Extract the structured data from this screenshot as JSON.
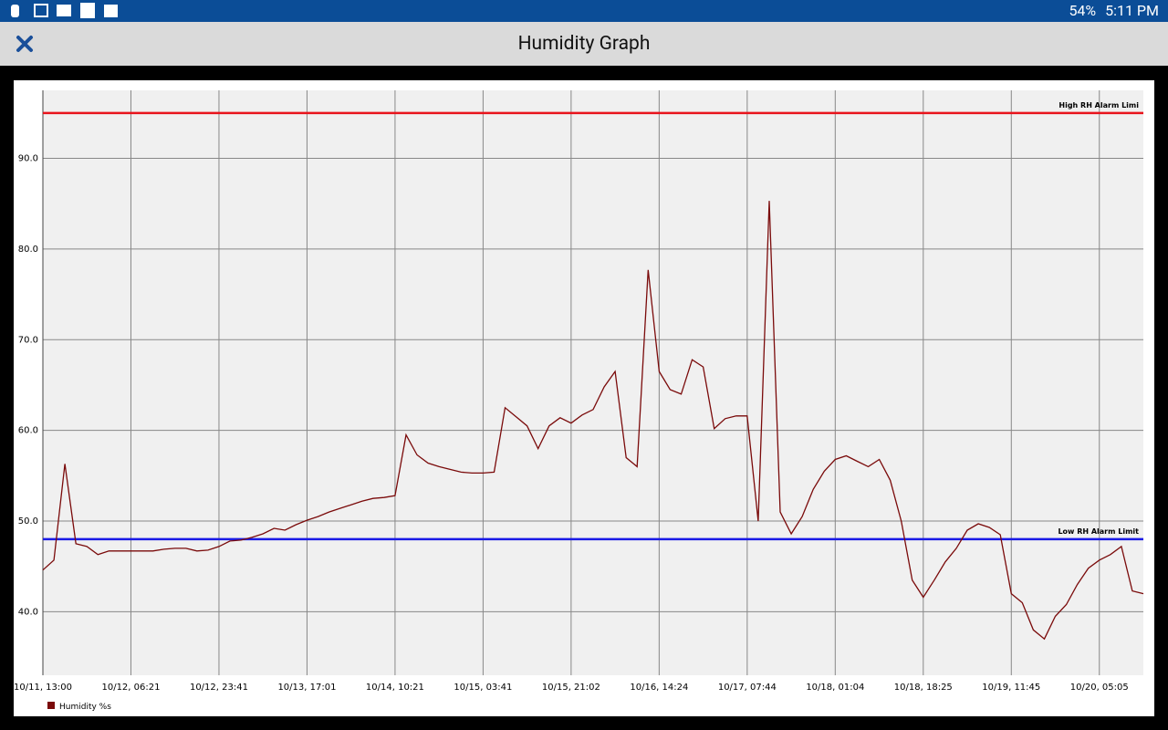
{
  "status_bar": {
    "battery": "54%",
    "time": "5:11 PM"
  },
  "header": {
    "title": "Humidity Graph"
  },
  "chart_data": {
    "type": "line",
    "categories": [
      "10/11, 13:00",
      null,
      null,
      null,
      null,
      null,
      null,
      null,
      "10/12, 06:21",
      null,
      null,
      null,
      null,
      null,
      null,
      null,
      "10/12, 23:41",
      null,
      null,
      null,
      null,
      null,
      null,
      null,
      "10/13, 17:01",
      null,
      null,
      null,
      null,
      null,
      null,
      null,
      "10/14, 10:21",
      null,
      null,
      null,
      null,
      null,
      null,
      null,
      "10/15, 03:41",
      null,
      null,
      null,
      null,
      null,
      null,
      null,
      "10/15, 21:02",
      null,
      null,
      null,
      null,
      null,
      null,
      null,
      "10/16, 14:24",
      null,
      null,
      null,
      null,
      null,
      null,
      null,
      "10/17, 07:44",
      null,
      null,
      null,
      null,
      null,
      null,
      null,
      "10/18, 01:04",
      null,
      null,
      null,
      null,
      null,
      null,
      null,
      "10/18, 18:25",
      null,
      null,
      null,
      null,
      null,
      null,
      null,
      "10/19, 11:45",
      null,
      null,
      null,
      null,
      null,
      null,
      null,
      "10/20, 05:05",
      null,
      null,
      null,
      null
    ],
    "series": [
      {
        "name": "Humidity %s",
        "color": "#7a0a0a",
        "values": [
          44.6,
          45.7,
          56.3,
          47.5,
          47.2,
          46.3,
          46.7,
          46.7,
          46.7,
          46.7,
          46.7,
          46.9,
          47.0,
          47.0,
          46.7,
          46.8,
          47.2,
          47.8,
          47.9,
          48.2,
          48.6,
          49.2,
          49.0,
          49.6,
          50.1,
          50.5,
          51.0,
          51.4,
          51.8,
          52.2,
          52.5,
          52.6,
          52.8,
          59.5,
          57.3,
          56.4,
          56.0,
          55.7,
          55.4,
          55.3,
          55.3,
          55.4,
          62.5,
          61.5,
          60.5,
          58.0,
          60.5,
          61.4,
          60.8,
          61.7,
          62.3,
          64.8,
          66.5,
          57.0,
          56.0,
          77.7,
          66.5,
          64.5,
          64.0,
          67.8,
          67.0,
          60.2,
          61.3,
          61.6,
          61.6,
          50.0,
          85.3,
          51.0,
          48.6,
          50.5,
          53.5,
          55.5,
          56.8,
          57.2,
          56.6,
          56.0,
          56.8,
          54.5,
          50.0,
          43.5,
          41.6,
          43.5,
          45.5,
          47.0,
          49.0,
          49.7,
          49.3,
          48.5,
          42.0,
          41.0,
          38.0,
          37.0,
          39.5,
          40.8,
          43.0,
          44.8,
          45.7,
          46.3,
          47.2,
          42.3,
          42.0
        ]
      }
    ],
    "reference_lines": [
      {
        "label": "High RH Alarm Limi",
        "value": 95,
        "color": "#e8141c"
      },
      {
        "label": "Low RH Alarm Limit",
        "value": 48,
        "color": "#1a1ae6"
      }
    ],
    "ylim": [
      33,
      97.5
    ],
    "yticks": [
      {
        "value": 40,
        "label": "40.0"
      },
      {
        "value": 50,
        "label": "50.0"
      },
      {
        "value": 60,
        "label": "60.0"
      },
      {
        "value": 70,
        "label": "70.0"
      },
      {
        "value": 80,
        "label": "80.0"
      },
      {
        "value": 90,
        "label": "90.0"
      }
    ],
    "grid": true
  }
}
